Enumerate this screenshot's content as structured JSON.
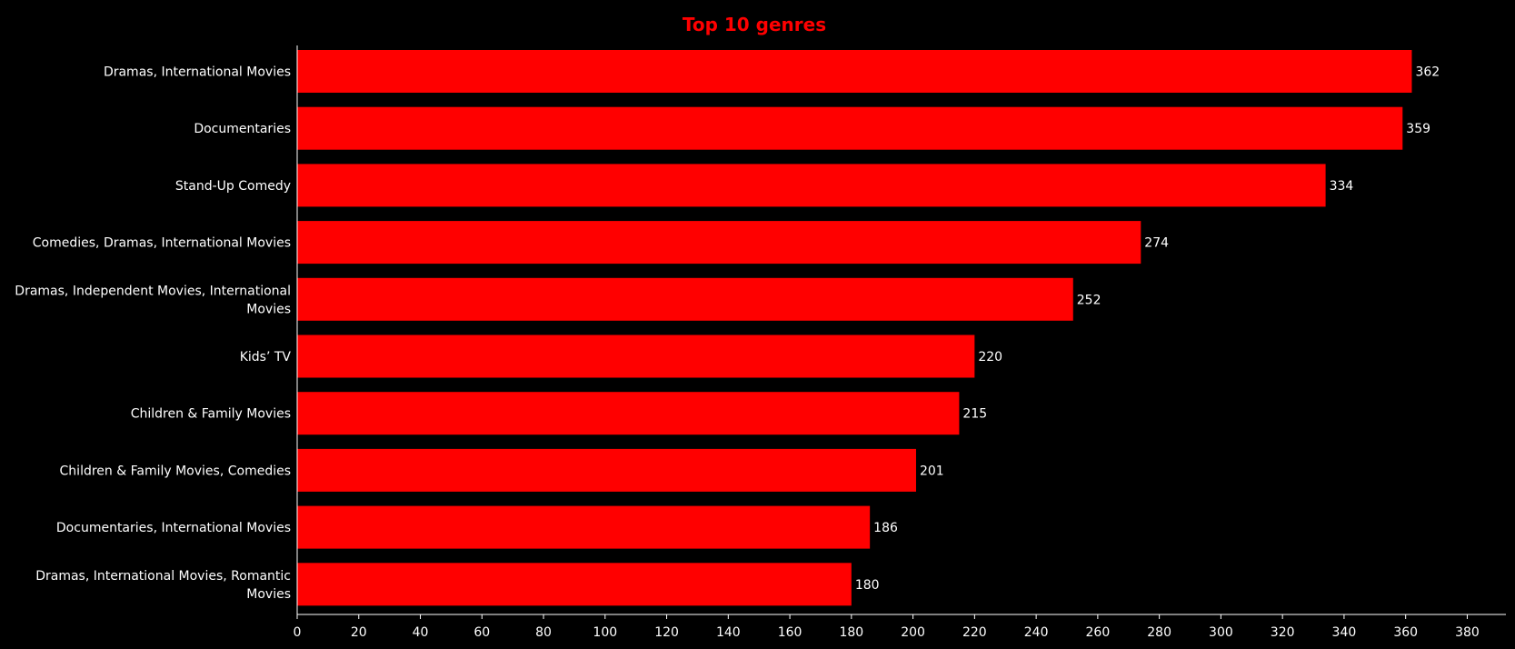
{
  "chart_data": {
    "type": "bar",
    "orientation": "horizontal",
    "title": "Top 10 genres",
    "categories": [
      "Dramas, International Movies",
      "Documentaries",
      "Stand-Up Comedy",
      "Comedies, Dramas, International Movies",
      "Dramas, Independent Movies, International Movies",
      "Kids' TV",
      "Children & Family Movies",
      "Children & Family Movies, Comedies",
      "Documentaries, International Movies",
      "Dramas, International Movies, Romantic Movies"
    ],
    "category_lines": [
      [
        "Dramas, International Movies"
      ],
      [
        "Documentaries"
      ],
      [
        "Stand-Up Comedy"
      ],
      [
        "Comedies, Dramas, International Movies"
      ],
      [
        "Dramas, Independent Movies, International",
        "Movies"
      ],
      [
        "Kids’ TV"
      ],
      [
        "Children & Family Movies"
      ],
      [
        "Children & Family Movies, Comedies"
      ],
      [
        "Documentaries, International Movies"
      ],
      [
        "Dramas, International Movies, Romantic",
        "Movies"
      ]
    ],
    "values": [
      362,
      359,
      334,
      274,
      252,
      220,
      215,
      201,
      186,
      180
    ],
    "xlabel": "",
    "ylabel": "",
    "xlim": [
      0,
      390
    ],
    "xticks": [
      0,
      20,
      40,
      60,
      80,
      100,
      120,
      140,
      160,
      180,
      200,
      220,
      240,
      260,
      280,
      300,
      320,
      340,
      360,
      380
    ],
    "grid": false,
    "legend": "none",
    "bar_color": "#ff0000",
    "title_color": "#ff0000",
    "background_color": "#000000",
    "text_color": "#ffffff"
  }
}
